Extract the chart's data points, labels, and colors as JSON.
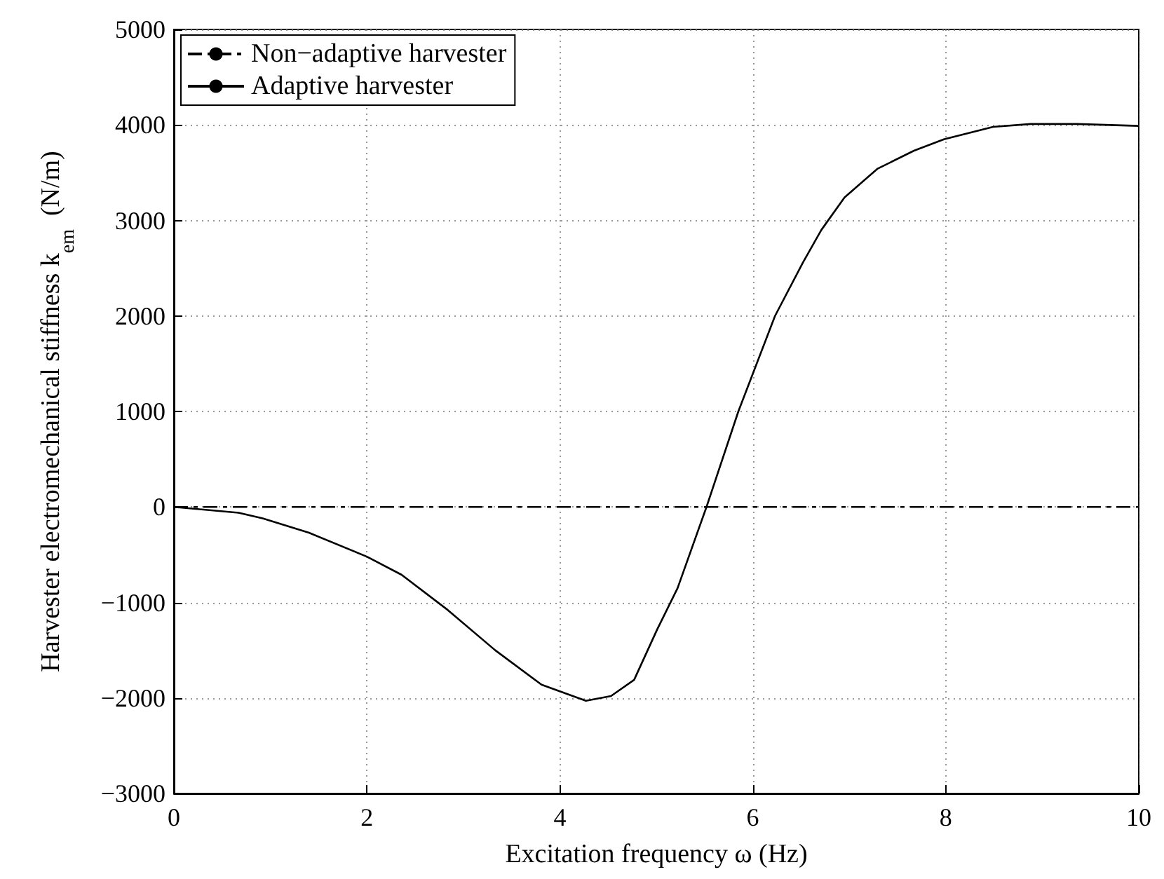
{
  "chart_data": {
    "type": "line",
    "xlabel": "Excitation frequency ω (Hz)",
    "ylabel": "Harvester electromechanical stiffness k$_{em}$  (N/m)",
    "xlim": [
      0,
      10
    ],
    "xticks": [
      0,
      2,
      4,
      6,
      8,
      10
    ],
    "ylim": [
      -3000,
      5000
    ],
    "yticks": [
      -3000,
      -2000,
      -1000,
      0,
      1000,
      2000,
      3000,
      4000,
      5000
    ],
    "grid": true,
    "legend": "top left",
    "marker": "none",
    "series": [
      {
        "name": "Non−adaptive harvester",
        "color": "#000000",
        "line_style": "dashed",
        "x": [
          0,
          10
        ],
        "values": [
          0,
          0
        ]
      },
      {
        "name": "Adaptive harvester",
        "color": "#000000",
        "line_style": "solid",
        "x": [
          0,
          0.67,
          0.92,
          1.4,
          2,
          2.36,
          2.84,
          3.33,
          3.81,
          4.27,
          4.53,
          4.77,
          5.01,
          5.22,
          5.52,
          5.85,
          6.23,
          6.52,
          6.71,
          6.95,
          7.29,
          7.67,
          7.98,
          8.49,
          8.88,
          9.36,
          10
        ],
        "values": [
          0,
          -60,
          -120,
          -270,
          -520,
          -710,
          -1080,
          -1500,
          -1860,
          -2030,
          -1980,
          -1810,
          -1280,
          -850,
          0,
          1000,
          2000,
          2560,
          2900,
          3240,
          3540,
          3730,
          3850,
          3980,
          4010,
          4010,
          3990
        ]
      }
    ]
  }
}
